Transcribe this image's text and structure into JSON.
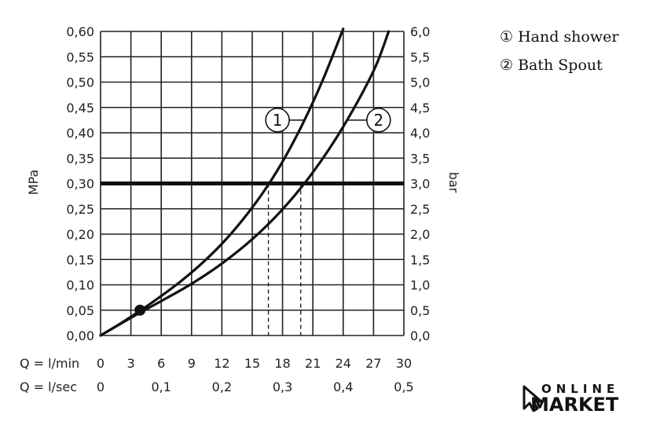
{
  "chart_data": {
    "type": "line",
    "ylabel_left": "MPa",
    "ylabel_right": "bar",
    "x_row1_label": "Q = l/min",
    "x_row2_label": "Q = l/sec",
    "x_ticks_lmin": [
      "0",
      "3",
      "6",
      "9",
      "12",
      "15",
      "18",
      "21",
      "24",
      "27",
      "30"
    ],
    "x_ticks_lsec": [
      {
        "value": 0.0,
        "label": "0"
      },
      {
        "value": 0.1,
        "label": "0,1"
      },
      {
        "value": 0.2,
        "label": "0,2"
      },
      {
        "value": 0.3,
        "label": "0,3"
      },
      {
        "value": 0.4,
        "label": "0,4"
      },
      {
        "value": 0.5,
        "label": "0,5"
      }
    ],
    "y_ticks_left": [
      "0,00",
      "0,05",
      "0,10",
      "0,15",
      "0,20",
      "0,25",
      "0,30",
      "0,35",
      "0,40",
      "0,45",
      "0,50",
      "0,55",
      "0,60"
    ],
    "y_ticks_right": [
      "0,0",
      "0,5",
      "1,0",
      "1,5",
      "2,0",
      "2,5",
      "3,0",
      "3,5",
      "4,0",
      "4,5",
      "5,0",
      "5,5",
      "6,0"
    ],
    "xlim": [
      0,
      30
    ],
    "ylim": [
      0,
      0.6
    ],
    "grid": true,
    "reference_line": {
      "y": 0.3
    },
    "series": [
      {
        "marker": "1",
        "x": [
          0,
          2,
          4,
          6,
          8,
          10,
          12,
          14,
          16,
          18,
          20,
          22,
          24
        ],
        "y": [
          0,
          0.024,
          0.05,
          0.078,
          0.108,
          0.142,
          0.181,
          0.227,
          0.28,
          0.343,
          0.418,
          0.505,
          0.605
        ]
      },
      {
        "marker": "2",
        "x": [
          0,
          3,
          6,
          9,
          12,
          15,
          18,
          21,
          24,
          27,
          28.5
        ],
        "y": [
          0,
          0.035,
          0.068,
          0.102,
          0.142,
          0.19,
          0.249,
          0.322,
          0.412,
          0.522,
          0.6
        ]
      }
    ],
    "operating_point": {
      "x": 3.9,
      "y": 0.05
    },
    "intersections": [
      {
        "x": 16.6,
        "y": 0.3
      },
      {
        "x": 19.8,
        "y": 0.3
      }
    ],
    "curve_markers": [
      {
        "label": "1",
        "x": 17.5,
        "y": 0.425
      },
      {
        "label": "2",
        "x": 27.5,
        "y": 0.425
      }
    ]
  },
  "legend": [
    {
      "num": "①",
      "label": "Hand shower"
    },
    {
      "num": "②",
      "label": "Bath Spout"
    }
  ],
  "logo": {
    "top": "ONLINE",
    "bottom": "MARKET"
  }
}
